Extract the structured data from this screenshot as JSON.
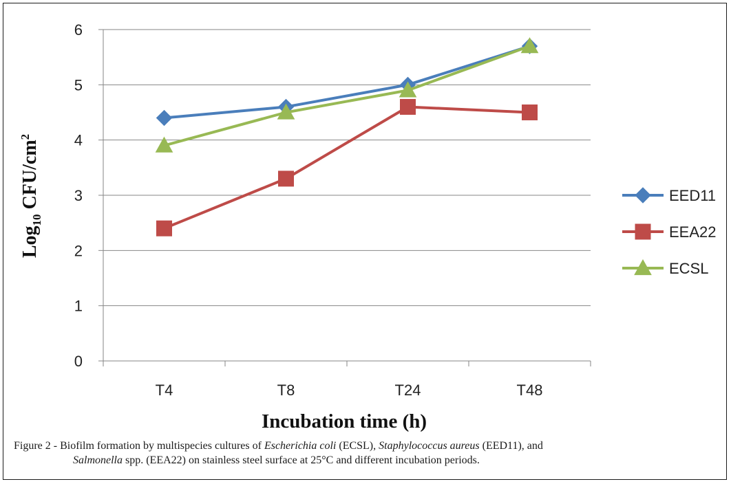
{
  "chart_data": {
    "type": "line",
    "categories": [
      "T4",
      "T8",
      "T24",
      "T48"
    ],
    "ylim": [
      0,
      6
    ],
    "yticks": [
      "0",
      "1",
      "2",
      "3",
      "4",
      "5",
      "6"
    ],
    "grid": true,
    "legend_position": "right",
    "xlabel": "Incubation time (h)",
    "ylabel": {
      "pre": "Log",
      "sub": "10",
      "mid": " CFU/cm",
      "sup": "2"
    },
    "series": [
      {
        "name": "EED11",
        "values": [
          4.4,
          4.6,
          5.0,
          5.7
        ],
        "color": "#4a7ebb",
        "marker": "diamond"
      },
      {
        "name": "EEA22",
        "values": [
          2.4,
          3.3,
          4.6,
          4.5
        ],
        "color": "#be4b48",
        "marker": "square"
      },
      {
        "name": "ECSL",
        "values": [
          3.9,
          4.5,
          4.9,
          5.7
        ],
        "color": "#98b954",
        "marker": "triangle"
      }
    ]
  },
  "caption": {
    "line1_a": "Figure 2 - Biofilm formation by multispecies cultures of ",
    "line1_b": "Escherichia coli",
    "line1_c": " (ECSL), ",
    "line1_d": "Staphylococcus aureus",
    "line1_e": " (EED11), and",
    "line2_a": "Salmonella",
    "line2_b": " spp. (EEA22) on stainless steel surface at 25°C and different incubation periods."
  }
}
